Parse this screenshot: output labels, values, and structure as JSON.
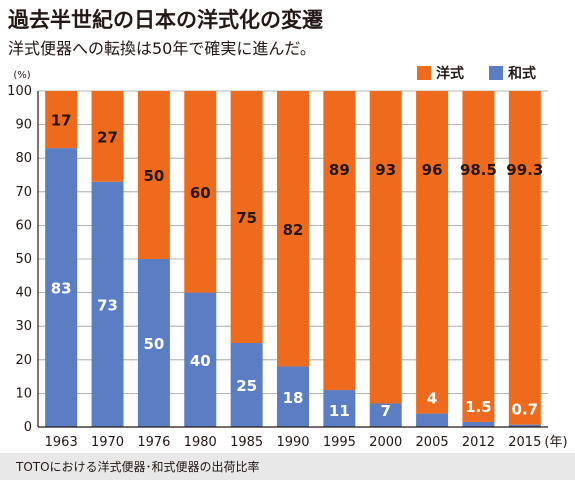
{
  "title": "過去半世紀の日本の洋式化の変遷",
  "subtitle": "洋式便器への転換は50年で確実に進んだ。",
  "footnote": "TOTOにおける洋式便器･和式便器の出荷比率",
  "colors": {
    "western": "#ee6b1d",
    "japanese": "#5b7dc4",
    "axis": "#231815",
    "grid": "#9e9e9e"
  },
  "chart_data": {
    "type": "bar",
    "stacked": true,
    "ylabel": "(%)",
    "xunit": "(年)",
    "ylim": [
      0,
      100
    ],
    "yticks": [
      0,
      10,
      20,
      30,
      40,
      50,
      60,
      70,
      80,
      90,
      100
    ],
    "grid": true,
    "legend_position": "top-right",
    "categories": [
      "1963",
      "1970",
      "1976",
      "1980",
      "1985",
      "1990",
      "1995",
      "2000",
      "2005",
      "2012",
      "2015"
    ],
    "series": [
      {
        "name": "和式",
        "values": [
          83,
          73,
          50,
          40,
          25,
          18,
          11,
          7,
          4,
          1.5,
          0.7
        ]
      },
      {
        "name": "洋式",
        "values": [
          17,
          27,
          50,
          60,
          75,
          82,
          89,
          93,
          96,
          98.5,
          99.3
        ]
      }
    ],
    "labels": {
      "japanese": [
        "83",
        "73",
        "50",
        "40",
        "25",
        "18",
        "11",
        "7",
        "4",
        "1.5",
        "0.7"
      ],
      "western": [
        "17",
        "27",
        "50",
        "60",
        "75",
        "82",
        "89",
        "93",
        "96",
        "98.5",
        "99.3"
      ]
    }
  }
}
